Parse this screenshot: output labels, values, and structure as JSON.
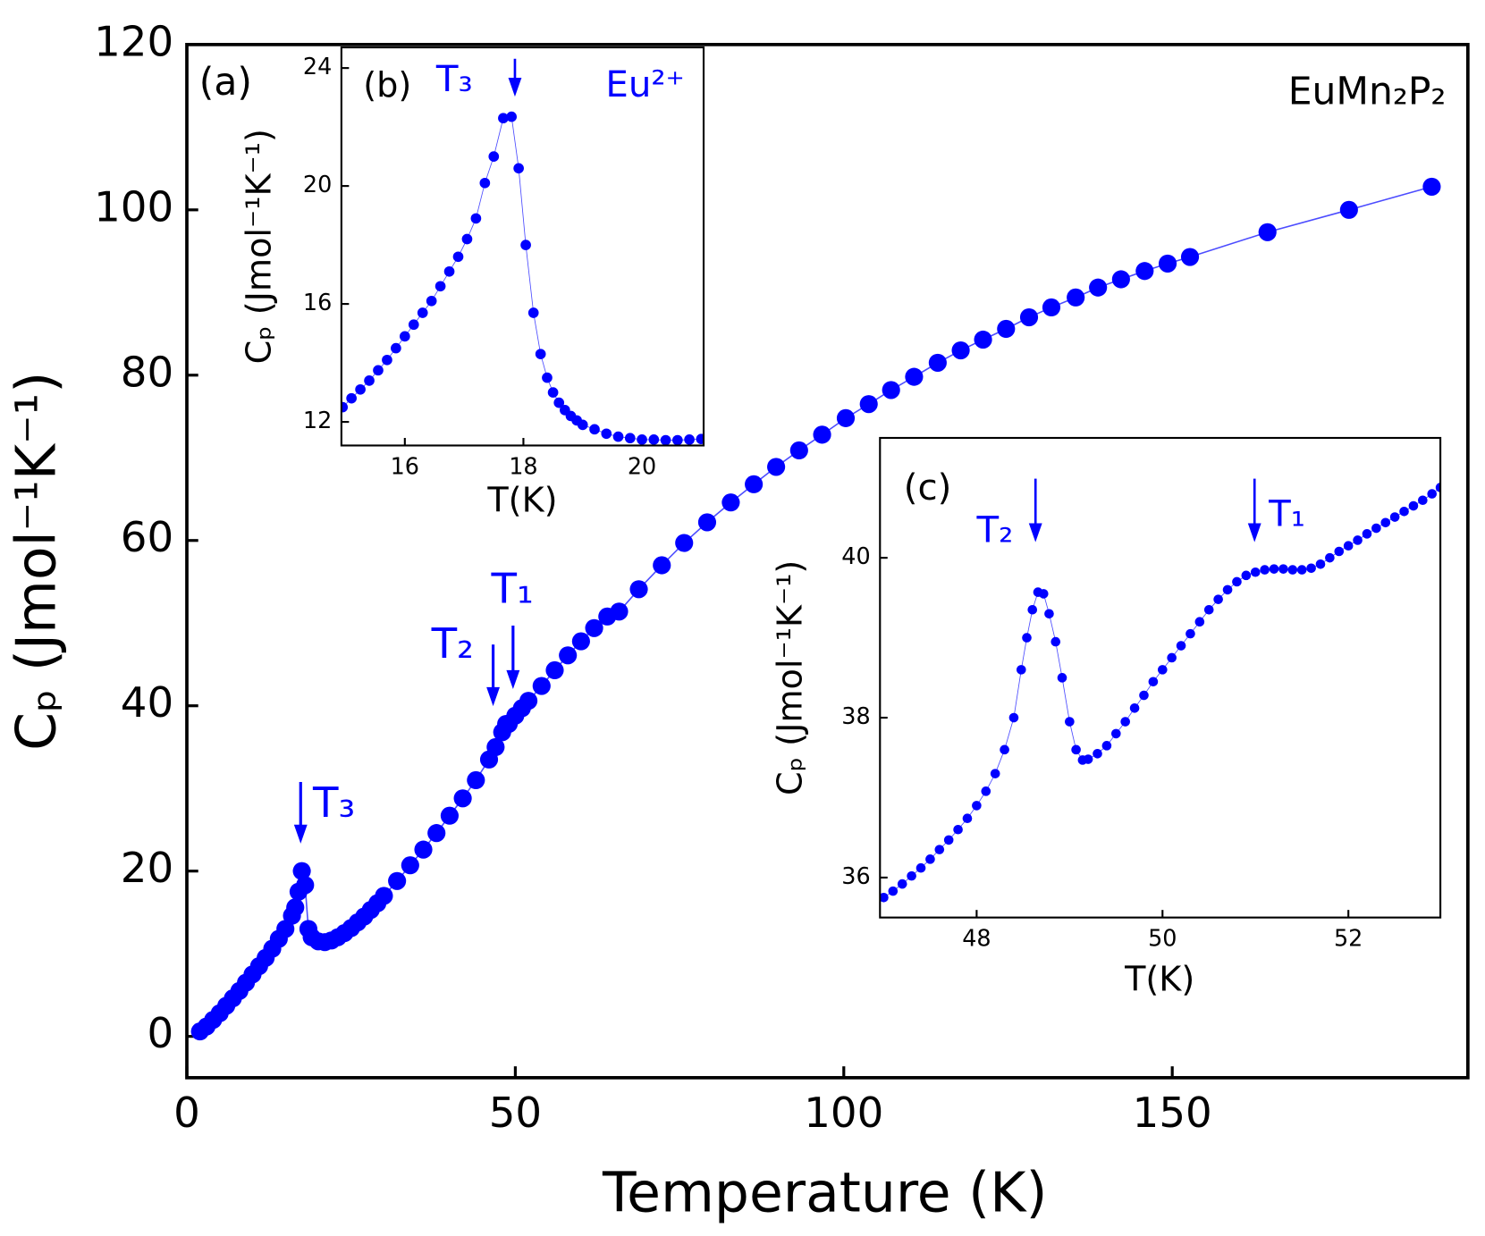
{
  "chart_data": [
    {
      "type": "scatter",
      "panel": "main",
      "xlabel": "Temperature (K)",
      "ylabel": "Cₚ (Jmol⁻¹K⁻¹)",
      "xlim": [
        0,
        195
      ],
      "ylim": [
        -5,
        120
      ],
      "xticks": [
        0,
        50,
        100,
        150
      ],
      "yticks": [
        0,
        20,
        40,
        60,
        80,
        100,
        120
      ],
      "color": "#0000ff",
      "annotations": [
        "(a)",
        "EuMn₂P₂",
        "T₃",
        "T₂",
        "T₁"
      ],
      "x": [
        2,
        3,
        4,
        5,
        6,
        7,
        8,
        9,
        10,
        11,
        12,
        13,
        14,
        15,
        16,
        16.5,
        17,
        17.5,
        18,
        18.5,
        19,
        20,
        21,
        22,
        23,
        24,
        25,
        26,
        27,
        28,
        29,
        30,
        32,
        34,
        36,
        38,
        40,
        42,
        44,
        46,
        47,
        48,
        48.6,
        49,
        50,
        51,
        52,
        54,
        56,
        58,
        60,
        62,
        64,
        65.8,
        68.8,
        72.3,
        75.7,
        79.2,
        82.8,
        86.3,
        89.7,
        93.2,
        96.7,
        100.3,
        103.8,
        107.2,
        110.7,
        114.3,
        117.8,
        121.2,
        124.7,
        128.2,
        131.6,
        135.3,
        138.7,
        142.2,
        145.8,
        149.3,
        152.7,
        164.5,
        176.9,
        189.5
      ],
      "values": [
        0.6,
        1.2,
        2,
        2.8,
        3.7,
        4.6,
        5.5,
        6.5,
        7.5,
        8.5,
        9.5,
        10.6,
        11.8,
        13,
        14.6,
        15.6,
        17.5,
        20,
        18.3,
        13,
        12,
        11.5,
        11.4,
        11.6,
        12,
        12.5,
        13.1,
        13.8,
        14.5,
        15.3,
        16.1,
        17,
        18.8,
        20.7,
        22.6,
        24.6,
        26.7,
        28.8,
        31,
        33.5,
        35,
        36.8,
        37.8,
        37.8,
        38.8,
        39.7,
        40.6,
        42.4,
        44.3,
        46.1,
        47.8,
        49.4,
        50.8,
        51.4,
        54.1,
        57,
        59.7,
        62.2,
        64.6,
        66.8,
        68.9,
        70.9,
        72.8,
        74.8,
        76.5,
        78.2,
        79.8,
        81.5,
        83,
        84.3,
        85.6,
        87,
        88.2,
        89.4,
        90.6,
        91.6,
        92.6,
        93.5,
        94.3,
        97.3,
        100,
        102.8
      ]
    },
    {
      "type": "scatter",
      "panel": "inset",
      "xlabel": "T(K)",
      "ylabel": "Cₚ (Jmol⁻¹K⁻¹)",
      "xlim": [
        14.93,
        21.04
      ],
      "ylim": [
        11.2,
        24.7
      ],
      "xticks": [
        16,
        18,
        20
      ],
      "yticks": [
        12,
        16,
        20,
        24
      ],
      "color": "#0000ff",
      "annotations": [
        "(b)",
        "T₃",
        "Eu²⁺"
      ],
      "x": [
        14.95,
        15.1,
        15.25,
        15.4,
        15.55,
        15.7,
        15.85,
        16,
        16.15,
        16.3,
        16.45,
        16.6,
        16.75,
        16.9,
        17.05,
        17.2,
        17.35,
        17.5,
        17.66,
        17.8,
        17.92,
        18.04,
        18.17,
        18.29,
        18.4,
        18.5,
        18.6,
        18.7,
        18.8,
        18.9,
        19,
        19.2,
        19.4,
        19.6,
        19.8,
        20,
        20.2,
        20.4,
        20.6,
        20.8,
        21
      ],
      "values": [
        12.5,
        12.8,
        13.1,
        13.4,
        13.75,
        14.1,
        14.5,
        14.9,
        15.3,
        15.7,
        16.1,
        16.6,
        17.1,
        17.6,
        18.2,
        18.9,
        20.1,
        21,
        22.3,
        22.35,
        20.6,
        18,
        15.7,
        14.3,
        13.5,
        13,
        12.65,
        12.4,
        12.2,
        12.05,
        11.9,
        11.75,
        11.6,
        11.5,
        11.45,
        11.4,
        11.4,
        11.38,
        11.38,
        11.4,
        11.42
      ]
    },
    {
      "type": "scatter",
      "panel": "inset",
      "xlabel": "T(K)",
      "ylabel": "Cₚ (Jmol⁻¹K⁻¹)",
      "xlim": [
        46.96,
        52.99
      ],
      "ylim": [
        35.5,
        41.5
      ],
      "xticks": [
        48,
        50,
        52
      ],
      "yticks": [
        36,
        38,
        40
      ],
      "color": "#0000ff",
      "annotations": [
        "(c)",
        "T₂",
        "T₁"
      ],
      "x": [
        47,
        47.1,
        47.2,
        47.3,
        47.4,
        47.5,
        47.6,
        47.7,
        47.8,
        47.9,
        48,
        48.1,
        48.2,
        48.3,
        48.4,
        48.48,
        48.54,
        48.6,
        48.66,
        48.72,
        48.78,
        48.85,
        48.92,
        49,
        49.07,
        49.14,
        49.2,
        49.3,
        49.4,
        49.5,
        49.6,
        49.7,
        49.8,
        49.9,
        50,
        50.1,
        50.2,
        50.3,
        50.4,
        50.5,
        50.6,
        50.7,
        50.8,
        50.9,
        51,
        51.1,
        51.2,
        51.3,
        51.4,
        51.5,
        51.6,
        51.7,
        51.8,
        51.9,
        52,
        52.1,
        52.2,
        52.3,
        52.4,
        52.5,
        52.6,
        52.7,
        52.8,
        52.9,
        52.99
      ],
      "values": [
        35.75,
        35.83,
        35.92,
        36.02,
        36.12,
        36.23,
        36.35,
        36.47,
        36.6,
        36.74,
        36.9,
        37.08,
        37.3,
        37.6,
        38,
        38.6,
        39,
        39.35,
        39.57,
        39.55,
        39.3,
        38.95,
        38.5,
        37.95,
        37.6,
        37.47,
        37.48,
        37.55,
        37.65,
        37.8,
        37.95,
        38.12,
        38.28,
        38.45,
        38.6,
        38.75,
        38.9,
        39.05,
        39.2,
        39.35,
        39.48,
        39.6,
        39.7,
        39.78,
        39.82,
        39.85,
        39.86,
        39.86,
        39.85,
        39.85,
        39.87,
        39.92,
        40,
        40.08,
        40.15,
        40.22,
        40.3,
        40.37,
        40.44,
        40.51,
        40.58,
        40.65,
        40.72,
        40.8,
        40.88
      ]
    }
  ]
}
